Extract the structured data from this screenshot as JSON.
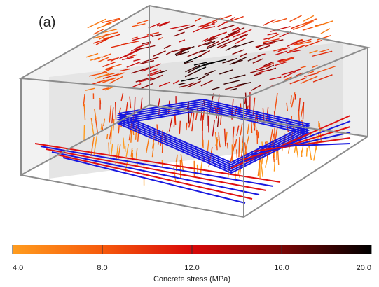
{
  "panel_label": "(a)",
  "colorbar": {
    "label": "Concrete stress (MPa)",
    "lim": [
      4,
      20
    ],
    "ticks": [
      {
        "value": 4,
        "label": "4.0"
      },
      {
        "value": 8,
        "label": "8.0"
      },
      {
        "value": 12,
        "label": "12.0"
      },
      {
        "value": 16,
        "label": "16.0"
      },
      {
        "value": 20,
        "label": "20.0"
      }
    ]
  }
}
